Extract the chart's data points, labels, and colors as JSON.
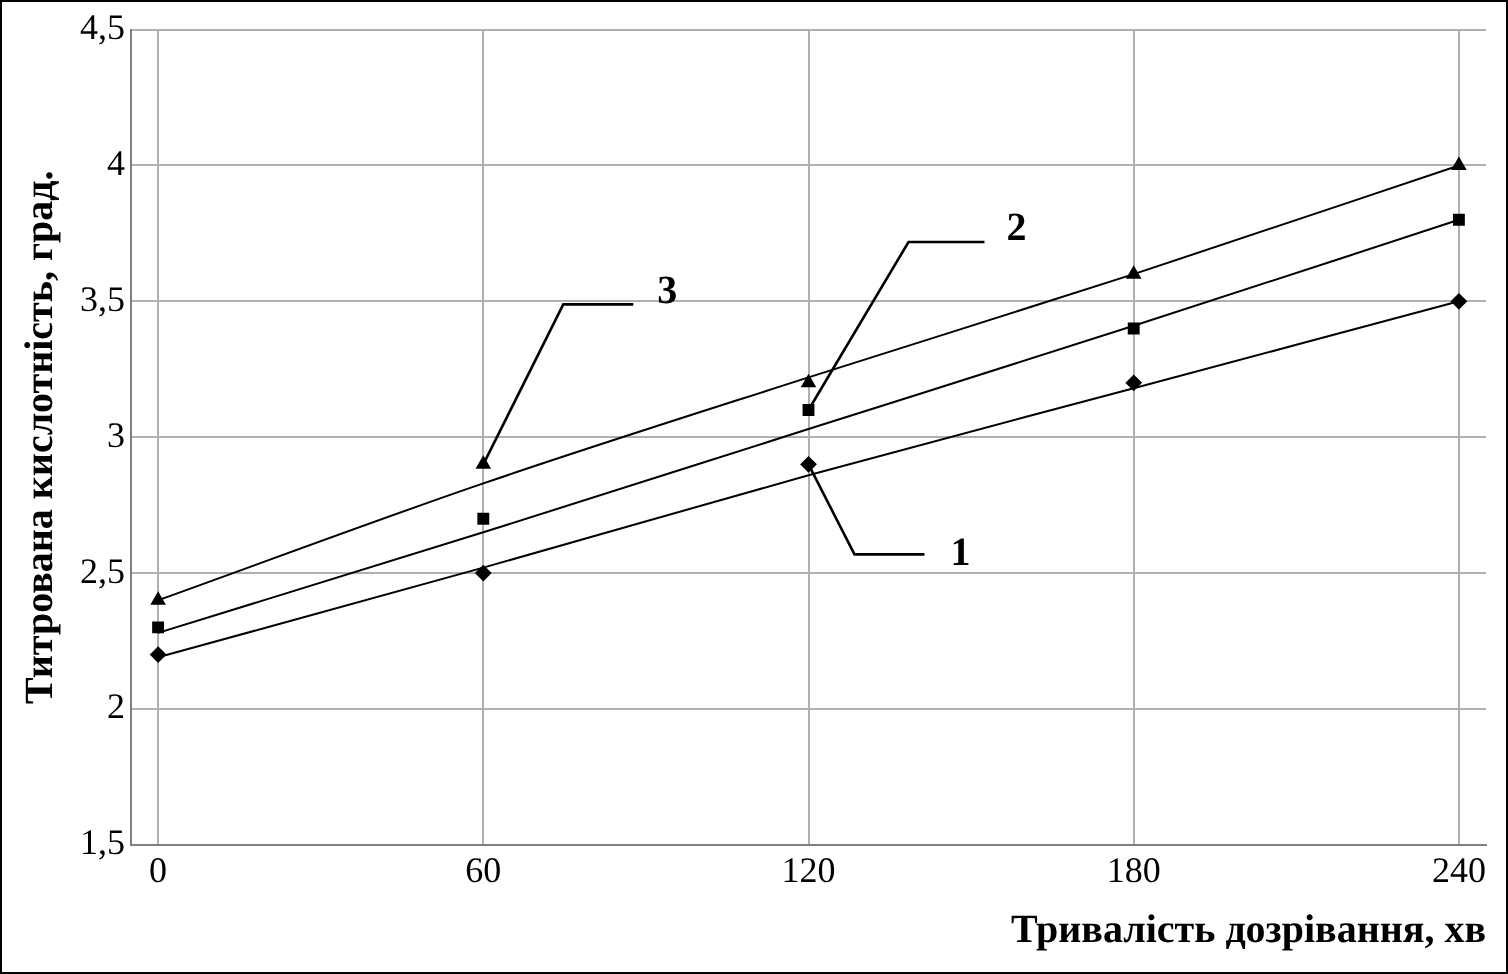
{
  "chart_data": {
    "type": "scatter",
    "xlabel": "Тривалість дозрівання, хв",
    "ylabel": "Титрована кислотність, град.",
    "xlim": [
      -5,
      245
    ],
    "xticks": [
      0,
      60,
      120,
      180,
      240
    ],
    "ylim": [
      1.5,
      4.5
    ],
    "yticks": [
      {
        "value": 1.5,
        "label": "1,5"
      },
      2,
      {
        "value": 2.5,
        "label": "2,5"
      },
      3,
      {
        "value": 3.5,
        "label": "3,5"
      },
      4,
      {
        "value": 4.5,
        "label": "4,5"
      }
    ],
    "grid": true,
    "legend": false,
    "series": [
      {
        "type": "scatter",
        "name": "1",
        "marker": "diamond",
        "color": "#000000",
        "x": [
          0,
          60,
          120,
          180,
          240
        ],
        "values": [
          2.2,
          2.5,
          2.9,
          3.2,
          3.5
        ]
      },
      {
        "type": "scatter",
        "name": "2",
        "marker": "square",
        "color": "#000000",
        "x": [
          0,
          60,
          120,
          180,
          240
        ],
        "values": [
          2.3,
          2.7,
          3.1,
          3.4,
          3.8
        ]
      },
      {
        "type": "scatter",
        "name": "3",
        "marker": "triangle",
        "color": "#000000",
        "x": [
          0,
          60,
          120,
          180,
          240
        ],
        "values": [
          2.4,
          2.9,
          3.2,
          3.6,
          4.0
        ]
      },
      {
        "type": "line",
        "color": "#000000",
        "x": [
          0,
          60,
          120,
          180,
          240
        ],
        "values": [
          2.19,
          2.52,
          2.86,
          3.18,
          3.5
        ]
      },
      {
        "type": "line",
        "color": "#000000",
        "x": [
          0,
          60,
          120,
          180,
          240
        ],
        "values": [
          2.28,
          2.65,
          3.03,
          3.41,
          3.8
        ]
      },
      {
        "type": "line",
        "color": "#000000",
        "x": [
          0,
          60,
          120,
          180,
          240
        ],
        "values": [
          2.4,
          2.83,
          3.22,
          3.6,
          4.0
        ]
      }
    ]
  }
}
